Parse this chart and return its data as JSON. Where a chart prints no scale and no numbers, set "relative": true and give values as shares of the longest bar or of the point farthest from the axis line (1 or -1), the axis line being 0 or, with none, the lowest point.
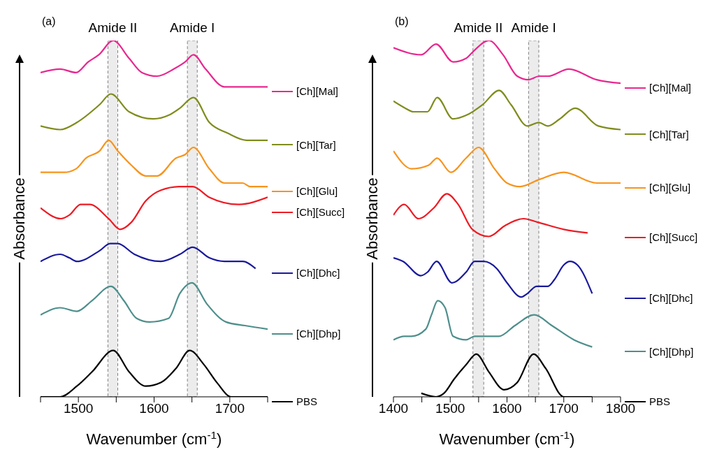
{
  "chart_data": [
    {
      "type": "line",
      "relative": true,
      "xlabel": "Wavenumber (cm$^{-1}$)",
      "ylabel": "Absorbance",
      "annotations": [
        "(a)"
      ],
      "legend": "right",
      "xlim": [
        1450,
        1750
      ],
      "xticks": [
        {
          "value": 1450,
          "label": null
        },
        1500,
        {
          "value": 1550,
          "label": null
        },
        1600,
        {
          "value": 1650,
          "label": null
        },
        1700,
        {
          "value": 1750,
          "label": null
        }
      ],
      "bands": [
        {
          "axis": "x",
          "from": 1539,
          "to": 1552,
          "label": "Amide II",
          "color": "#808080"
        },
        {
          "axis": "x",
          "from": 1644,
          "to": 1657,
          "label": "Amide I",
          "color": "#808080"
        }
      ],
      "series": [
        {
          "name": "[Ch][Mal]",
          "color": "#e8288f",
          "x": [
            1450,
            1476,
            1497,
            1513,
            1527,
            1546,
            1567,
            1584,
            1604,
            1626,
            1641,
            1652,
            1668,
            1693,
            1750
          ],
          "values": [
            0.91,
            0.92,
            0.91,
            0.94,
            0.96,
            1.0,
            0.95,
            0.91,
            0.9,
            0.92,
            0.94,
            0.96,
            0.92,
            0.87,
            0.87
          ]
        },
        {
          "name": "[Ch][Tar]",
          "color": "#808c1e",
          "x": [
            1450,
            1476,
            1498,
            1528,
            1543,
            1567,
            1599,
            1619,
            1634,
            1652,
            1673,
            1697,
            1722,
            1750
          ],
          "values": [
            0.76,
            0.75,
            0.77,
            0.82,
            0.85,
            0.8,
            0.78,
            0.79,
            0.81,
            0.84,
            0.77,
            0.74,
            0.72,
            0.72
          ]
        },
        {
          "name": "[Ch][Glu]",
          "color": "#f7941d",
          "x": [
            1450,
            1481,
            1497,
            1510,
            1528,
            1540,
            1552,
            1570,
            1589,
            1604,
            1629,
            1641,
            1652,
            1673,
            1693,
            1717,
            1727,
            1750
          ],
          "values": [
            0.63,
            0.63,
            0.64,
            0.67,
            0.69,
            0.72,
            0.69,
            0.65,
            0.62,
            0.62,
            0.67,
            0.68,
            0.7,
            0.64,
            0.6,
            0.6,
            0.59,
            0.59
          ]
        },
        {
          "name": "[Ch][Succ]",
          "color": "#ed1c24",
          "x": [
            1450,
            1477,
            1488,
            1503,
            1515,
            1540,
            1555,
            1570,
            1589,
            1609,
            1634,
            1651,
            1673,
            1712,
            1750
          ],
          "values": [
            0.53,
            0.5,
            0.51,
            0.54,
            0.54,
            0.5,
            0.47,
            0.49,
            0.55,
            0.58,
            0.59,
            0.59,
            0.56,
            0.54,
            0.56
          ]
        },
        {
          "name": "[Ch][Dhc]",
          "color": "#1a1a9c",
          "x": [
            1450,
            1476,
            1488,
            1498,
            1528,
            1542,
            1552,
            1574,
            1609,
            1634,
            1651,
            1673,
            1693,
            1702,
            1717,
            1734
          ],
          "values": [
            0.38,
            0.4,
            0.39,
            0.38,
            0.41,
            0.43,
            0.43,
            0.4,
            0.38,
            0.4,
            0.42,
            0.39,
            0.38,
            0.38,
            0.38,
            0.36
          ]
        },
        {
          "name": "[Ch][Dhp]",
          "color": "#4e8f8c",
          "x": [
            1450,
            1476,
            1498,
            1518,
            1543,
            1560,
            1577,
            1594,
            1619,
            1634,
            1650,
            1670,
            1695,
            1720,
            1750
          ],
          "values": [
            0.23,
            0.25,
            0.24,
            0.27,
            0.31,
            0.27,
            0.22,
            0.21,
            0.22,
            0.29,
            0.32,
            0.26,
            0.21,
            0.2,
            0.19
          ]
        },
        {
          "name": "PBS",
          "color": "#000000",
          "x": [
            1450,
            1469,
            1476,
            1498,
            1518,
            1546,
            1567,
            1589,
            1609,
            1629,
            1647,
            1666,
            1683,
            1702,
            1750
          ],
          "values": [
            0.0,
            0.0,
            0.0,
            0.03,
            0.07,
            0.13,
            0.07,
            0.03,
            0.04,
            0.08,
            0.13,
            0.09,
            0.04,
            0.0,
            0.0
          ]
        }
      ]
    },
    {
      "type": "line",
      "relative": true,
      "xlabel": "Wavenumber (cm$^{-1}$)",
      "ylabel": "Absorbance",
      "annotations": [
        "(b)"
      ],
      "legend": "right",
      "xlim": [
        1400,
        1800
      ],
      "xticks": [
        1400,
        {
          "value": 1450,
          "label": null
        },
        1500,
        {
          "value": 1550,
          "label": null
        },
        1600,
        {
          "value": 1650,
          "label": null
        },
        1700,
        {
          "value": 1750,
          "label": null
        },
        1800
      ],
      "bands": [
        {
          "axis": "x",
          "from": 1540,
          "to": 1559,
          "label": "Amide II",
          "color": "#808080"
        },
        {
          "axis": "x",
          "from": 1638,
          "to": 1656,
          "label": "Amide I",
          "color": "#808080"
        }
      ],
      "series": [
        {
          "name": "[Ch][Mal]",
          "color": "#e8288f",
          "x": [
            1400,
            1449,
            1475,
            1505,
            1528,
            1541,
            1568,
            1593,
            1618,
            1638,
            1657,
            1672,
            1709,
            1758,
            1800
          ],
          "values": [
            0.98,
            0.96,
            0.99,
            0.94,
            0.95,
            0.97,
            1.0,
            0.96,
            0.9,
            0.89,
            0.9,
            0.9,
            0.92,
            0.89,
            0.88
          ]
        },
        {
          "name": "[Ch][Tar]",
          "color": "#808c1e",
          "x": [
            1400,
            1421,
            1435,
            1460,
            1477,
            1505,
            1528,
            1557,
            1586,
            1607,
            1636,
            1656,
            1672,
            1693,
            1720,
            1761,
            1800
          ],
          "values": [
            0.83,
            0.81,
            0.8,
            0.8,
            0.84,
            0.78,
            0.79,
            0.82,
            0.86,
            0.82,
            0.76,
            0.77,
            0.76,
            0.78,
            0.81,
            0.76,
            0.75
          ]
        },
        {
          "name": "[Ch][Glu]",
          "color": "#f7941d",
          "x": [
            1400,
            1432,
            1462,
            1477,
            1501,
            1528,
            1550,
            1578,
            1600,
            1623,
            1657,
            1700,
            1758,
            1800
          ],
          "values": [
            0.69,
            0.64,
            0.65,
            0.67,
            0.63,
            0.67,
            0.7,
            0.64,
            0.6,
            0.59,
            0.61,
            0.63,
            0.6,
            0.6
          ]
        },
        {
          "name": "[Ch][Succ]",
          "color": "#ed1c24",
          "x": [
            1400,
            1419,
            1444,
            1471,
            1494,
            1514,
            1539,
            1568,
            1596,
            1629,
            1654,
            1700,
            1742
          ],
          "values": [
            0.51,
            0.54,
            0.5,
            0.53,
            0.57,
            0.54,
            0.47,
            0.45,
            0.48,
            0.5,
            0.49,
            0.47,
            0.46
          ]
        },
        {
          "name": "[Ch][Dhc]",
          "color": "#1a1a9c",
          "x": [
            1400,
            1417,
            1448,
            1460,
            1476,
            1503,
            1528,
            1543,
            1559,
            1582,
            1600,
            1625,
            1636,
            1652,
            1672,
            1684,
            1700,
            1711,
            1724,
            1750
          ],
          "values": [
            0.39,
            0.38,
            0.34,
            0.35,
            0.38,
            0.32,
            0.35,
            0.38,
            0.38,
            0.36,
            0.32,
            0.28,
            0.29,
            0.31,
            0.31,
            0.33,
            0.37,
            0.38,
            0.37,
            0.29
          ]
        },
        {
          "name": "[Ch][Dhp]",
          "color": "#4e8f8c",
          "x": [
            1400,
            1419,
            1432,
            1457,
            1467,
            1478,
            1491,
            1505,
            1528,
            1543,
            1586,
            1614,
            1648,
            1679,
            1718,
            1750
          ],
          "values": [
            0.16,
            0.17,
            0.17,
            0.19,
            0.23,
            0.27,
            0.25,
            0.17,
            0.16,
            0.17,
            0.17,
            0.2,
            0.23,
            0.2,
            0.16,
            0.14
          ]
        },
        {
          "name": "PBS",
          "color": "#000000",
          "x": [
            1449,
            1475,
            1489,
            1507,
            1528,
            1546,
            1568,
            1595,
            1618,
            1647,
            1668,
            1700,
            1750
          ],
          "values": [
            0.01,
            0.0,
            0.01,
            0.05,
            0.09,
            0.12,
            0.07,
            0.02,
            0.04,
            0.12,
            0.08,
            0.0,
            0.0
          ]
        }
      ]
    }
  ]
}
